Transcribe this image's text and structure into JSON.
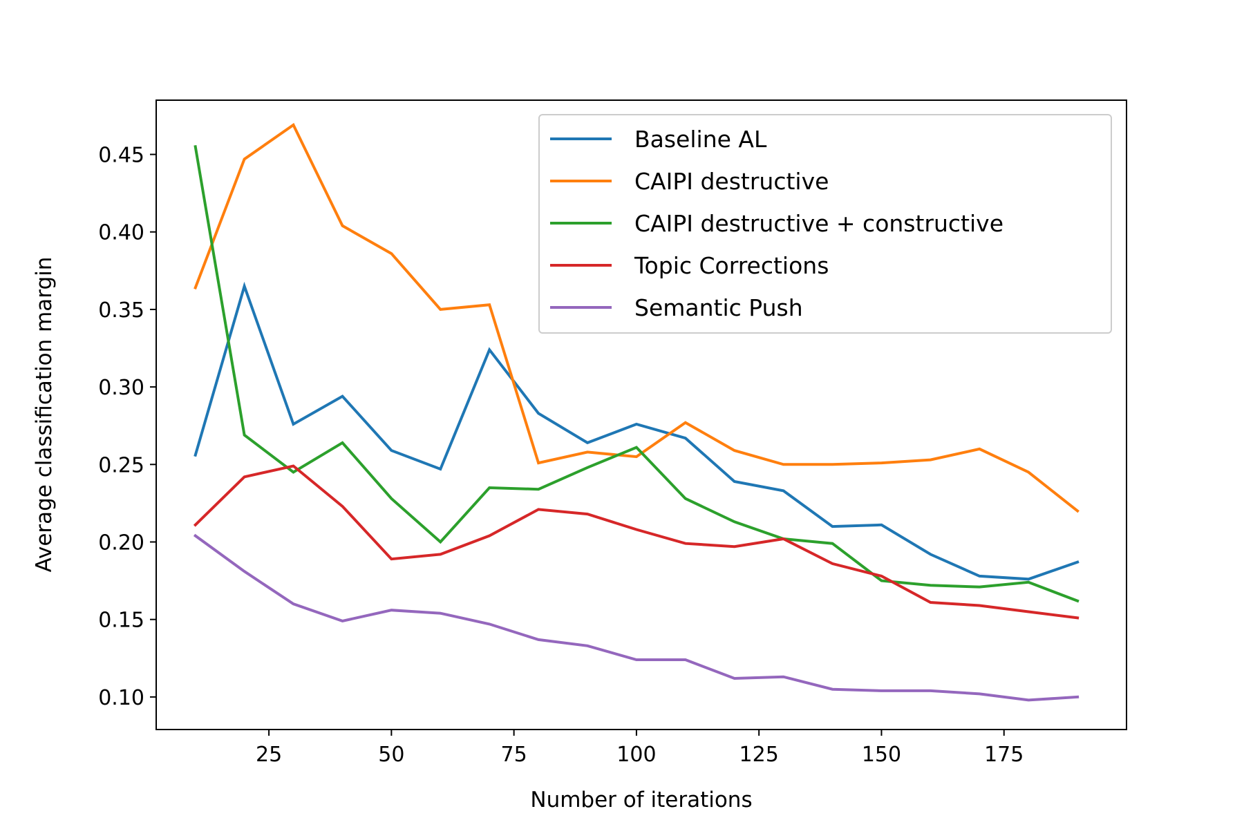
{
  "chart_data": {
    "type": "line",
    "title": "",
    "xlabel": "Number of iterations",
    "ylabel": "Average classification margin",
    "xlim": [
      2,
      200
    ],
    "ylim": [
      0.079,
      0.485
    ],
    "xticks": [
      25,
      50,
      75,
      100,
      125,
      150,
      175
    ],
    "yticks": [
      0.1,
      0.15,
      0.2,
      0.25,
      0.3,
      0.35,
      0.4,
      0.45
    ],
    "grid": false,
    "legend": "top-right",
    "x": [
      10,
      20,
      30,
      40,
      50,
      60,
      70,
      80,
      90,
      100,
      110,
      120,
      130,
      140,
      150,
      160,
      170,
      180,
      190
    ],
    "series": [
      {
        "name": "Baseline AL",
        "color": "#1f77b4",
        "values": [
          0.256,
          0.365,
          0.276,
          0.294,
          0.259,
          0.247,
          0.324,
          0.283,
          0.264,
          0.276,
          0.267,
          0.239,
          0.233,
          0.21,
          0.211,
          0.192,
          0.178,
          0.176,
          0.187
        ]
      },
      {
        "name": "CAIPI destructive",
        "color": "#ff7f0e",
        "values": [
          0.364,
          0.447,
          0.469,
          0.404,
          0.386,
          0.35,
          0.353,
          0.251,
          0.258,
          0.255,
          0.277,
          0.259,
          0.25,
          0.25,
          0.251,
          0.253,
          0.26,
          0.245,
          0.22
        ]
      },
      {
        "name": "CAIPI destructive + constructive",
        "color": "#2ca02c",
        "values": [
          0.455,
          0.269,
          0.245,
          0.264,
          0.228,
          0.2,
          0.235,
          0.234,
          0.248,
          0.261,
          0.228,
          0.213,
          0.202,
          0.199,
          0.175,
          0.172,
          0.171,
          0.174,
          0.162
        ]
      },
      {
        "name": "Topic Corrections",
        "color": "#d62728",
        "values": [
          0.211,
          0.242,
          0.249,
          0.223,
          0.189,
          0.192,
          0.204,
          0.221,
          0.218,
          0.208,
          0.199,
          0.197,
          0.202,
          0.186,
          0.178,
          0.161,
          0.159,
          0.155,
          0.151
        ]
      },
      {
        "name": "Semantic Push",
        "color": "#9467bd",
        "values": [
          0.204,
          0.181,
          0.16,
          0.149,
          0.156,
          0.154,
          0.147,
          0.137,
          0.133,
          0.124,
          0.124,
          0.112,
          0.113,
          0.105,
          0.104,
          0.104,
          0.102,
          0.098,
          0.1
        ]
      }
    ]
  }
}
